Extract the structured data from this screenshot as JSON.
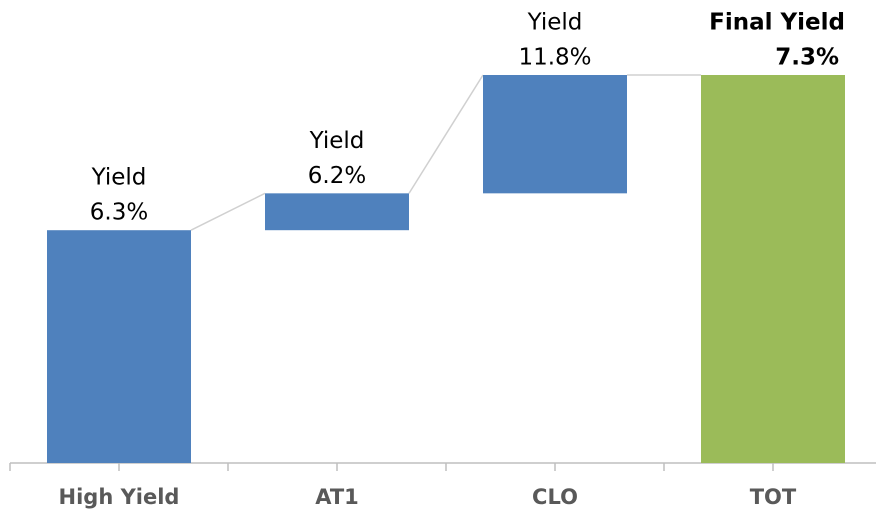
{
  "chart_data": {
    "type": "waterfall",
    "categories": [
      "High Yield",
      "AT1",
      "CLO",
      "TOT"
    ],
    "values": [
      60,
      9.5,
      30.5,
      100
    ],
    "is_total": [
      false,
      false,
      false,
      true
    ],
    "labels": [
      {
        "title": "Yield",
        "value": "6.3%"
      },
      {
        "title": "Yield",
        "value": "6.2%"
      },
      {
        "title": "Yield",
        "value": "11.8%"
      },
      {
        "title": "Final Yield",
        "value": "7.3%"
      }
    ],
    "colors": {
      "increase": "#4f81bd",
      "total": "#9bbb59"
    },
    "ylim": [
      0,
      100
    ]
  }
}
